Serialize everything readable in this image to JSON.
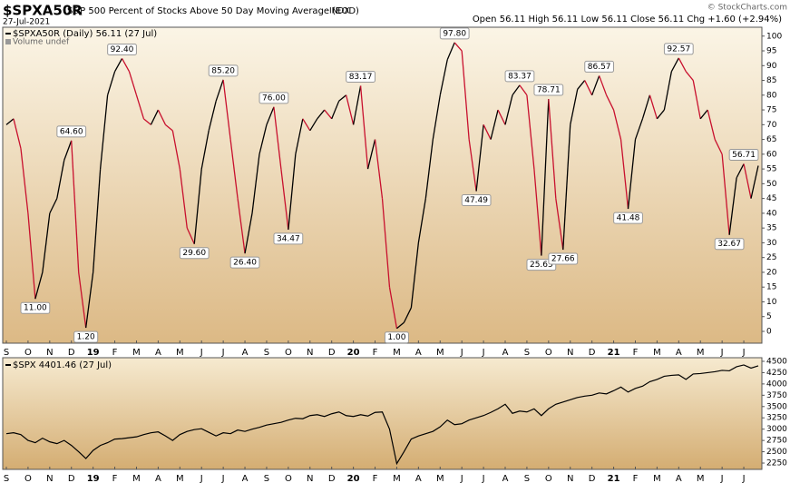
{
  "chart_data": [
    {
      "type": "line",
      "title": "$SPXA50R",
      "subtitle": "S&P 500 Percent of Stocks Above 50 Day Moving Average (EOD)",
      "exchange": "INDX",
      "date": "27-Jul-2021",
      "quote": "Open 56.11  High 56.11  Low 56.11  Close 56.11  Chg +1.60 (+2.94%)",
      "credit": "© StockCharts.com",
      "volume_note": "Volume undef",
      "categories": [
        "S",
        null,
        null,
        "O",
        null,
        null,
        "N",
        null,
        null,
        "D",
        null,
        null,
        "19",
        null,
        null,
        "F",
        null,
        null,
        "M",
        null,
        null,
        "A",
        null,
        null,
        "M",
        null,
        null,
        "J",
        null,
        null,
        "J",
        null,
        null,
        "A",
        null,
        null,
        "S",
        null,
        null,
        "O",
        null,
        null,
        "N",
        null,
        null,
        "D",
        null,
        null,
        "20",
        null,
        null,
        "F",
        null,
        null,
        "M",
        null,
        null,
        "A",
        null,
        null,
        "M",
        null,
        null,
        "J",
        null,
        null,
        "J",
        null,
        null,
        "A",
        null,
        null,
        "S",
        null,
        null,
        "O",
        null,
        null,
        "N",
        null,
        null,
        "D",
        null,
        null,
        "21",
        null,
        null,
        "F",
        null,
        null,
        "M",
        null,
        null,
        "A",
        null,
        null,
        "M",
        null,
        null,
        "J",
        null,
        null,
        "J",
        null,
        null
      ],
      "series": [
        {
          "name": "$SPXA50R (Daily) 56.11 (27 Jul)",
          "up_color": "#000000",
          "down_color": "#c8102e",
          "values": [
            70,
            72,
            62,
            40,
            11,
            20,
            40,
            45,
            58,
            64.6,
            20,
            1.2,
            20,
            55,
            80,
            88,
            92.4,
            88,
            80,
            72,
            70,
            75,
            70,
            68,
            55,
            35,
            29.6,
            55,
            68,
            78,
            85.2,
            65,
            45,
            26.4,
            40,
            60,
            70,
            76,
            55,
            34.47,
            60,
            72,
            68,
            72,
            75,
            72,
            78,
            80,
            70,
            83.17,
            55,
            65,
            45,
            15,
            1,
            3,
            8,
            30,
            45,
            65,
            80,
            92,
            97.8,
            95,
            65,
            47.49,
            70,
            65,
            75,
            70,
            80,
            83.37,
            80,
            55,
            25.65,
            78.71,
            45,
            27.66,
            70,
            82,
            85,
            80,
            86.57,
            80,
            75,
            65,
            41.48,
            65,
            72,
            80,
            72,
            75,
            88,
            92.57,
            88,
            85,
            72,
            75,
            65,
            60,
            32.67,
            52,
            56.71,
            45,
            56.11
          ],
          "value_labels": [
            null,
            null,
            null,
            null,
            "11.00",
            null,
            null,
            null,
            null,
            "64.60",
            null,
            "1.20",
            null,
            null,
            null,
            null,
            "92.40",
            null,
            null,
            null,
            null,
            null,
            null,
            null,
            null,
            null,
            "29.60",
            null,
            null,
            null,
            "85.20",
            null,
            null,
            "26.40",
            null,
            null,
            null,
            "76.00",
            null,
            "34.47",
            null,
            null,
            null,
            null,
            null,
            null,
            null,
            null,
            null,
            "83.17",
            null,
            null,
            null,
            null,
            "1.00",
            null,
            null,
            null,
            null,
            null,
            null,
            null,
            "97.80",
            null,
            null,
            "47.49",
            null,
            null,
            null,
            null,
            null,
            "83.37",
            null,
            null,
            "25.65",
            "78.71",
            null,
            "27.66",
            null,
            null,
            null,
            null,
            "86.57",
            null,
            null,
            null,
            "41.48",
            null,
            null,
            null,
            null,
            null,
            null,
            "92.57",
            null,
            null,
            null,
            null,
            null,
            null,
            "32.67",
            null,
            "56.71",
            null,
            null
          ]
        }
      ],
      "ylim": [
        -4,
        103
      ],
      "yticks": [
        0,
        5,
        10,
        15,
        20,
        25,
        30,
        35,
        40,
        45,
        50,
        55,
        60,
        65,
        70,
        75,
        80,
        85,
        90,
        95,
        100
      ]
    },
    {
      "type": "line",
      "categories": [
        "S",
        null,
        null,
        "O",
        null,
        null,
        "N",
        null,
        null,
        "D",
        null,
        null,
        "19",
        null,
        null,
        "F",
        null,
        null,
        "M",
        null,
        null,
        "A",
        null,
        null,
        "M",
        null,
        null,
        "J",
        null,
        null,
        "J",
        null,
        null,
        "A",
        null,
        null,
        "S",
        null,
        null,
        "O",
        null,
        null,
        "N",
        null,
        null,
        "D",
        null,
        null,
        "20",
        null,
        null,
        "F",
        null,
        null,
        "M",
        null,
        null,
        "A",
        null,
        null,
        "M",
        null,
        null,
        "J",
        null,
        null,
        "J",
        null,
        null,
        "A",
        null,
        null,
        "S",
        null,
        null,
        "O",
        null,
        null,
        "N",
        null,
        null,
        "D",
        null,
        null,
        "21",
        null,
        null,
        "F",
        null,
        null,
        "M",
        null,
        null,
        "A",
        null,
        null,
        "M",
        null,
        null,
        "J",
        null,
        null,
        "J",
        null,
        null
      ],
      "series": [
        {
          "name": "$SPX 4401.46 (27 Jul)",
          "color": "#000000",
          "values": [
            2900,
            2920,
            2880,
            2750,
            2700,
            2800,
            2720,
            2680,
            2750,
            2640,
            2500,
            2350,
            2530,
            2640,
            2700,
            2780,
            2790,
            2810,
            2830,
            2880,
            2920,
            2940,
            2850,
            2750,
            2880,
            2950,
            2990,
            3010,
            2930,
            2850,
            2920,
            2900,
            2980,
            2950,
            3000,
            3040,
            3090,
            3120,
            3150,
            3200,
            3240,
            3230,
            3300,
            3320,
            3280,
            3340,
            3380,
            3300,
            3280,
            3320,
            3290,
            3370,
            3380,
            3000,
            2237,
            2500,
            2780,
            2850,
            2900,
            2950,
            3050,
            3200,
            3100,
            3120,
            3200,
            3250,
            3300,
            3370,
            3450,
            3550,
            3350,
            3400,
            3380,
            3450,
            3300,
            3450,
            3550,
            3600,
            3650,
            3700,
            3730,
            3750,
            3800,
            3780,
            3850,
            3930,
            3820,
            3900,
            3950,
            4050,
            4100,
            4170,
            4190,
            4200,
            4100,
            4220,
            4230,
            4250,
            4270,
            4300,
            4290,
            4380,
            4420,
            4350,
            4401.46
          ]
        }
      ],
      "ylim": [
        2110,
        4580
      ],
      "yticks": [
        2250,
        2500,
        2750,
        3000,
        3250,
        3500,
        3750,
        4000,
        4250,
        4500
      ]
    }
  ]
}
